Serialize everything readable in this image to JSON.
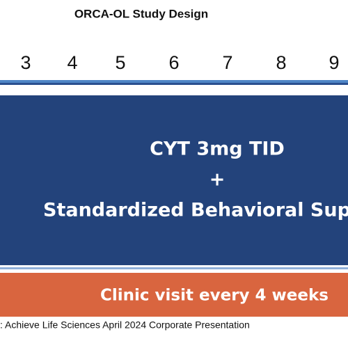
{
  "header": {
    "title": "ORCA-OL Study Design"
  },
  "timeline": {
    "weeks": [
      3,
      4,
      5,
      6,
      7,
      8,
      9
    ]
  },
  "treatment": {
    "lines": [
      "CYT 3mg TID",
      "+",
      "Standardized Behavioral Sup"
    ]
  },
  "visits": {
    "label": "Clinic visit every 4 weeks"
  },
  "footer": {
    "source": ": Achieve Life Sciences April 2024 Corporate Presentation"
  }
}
